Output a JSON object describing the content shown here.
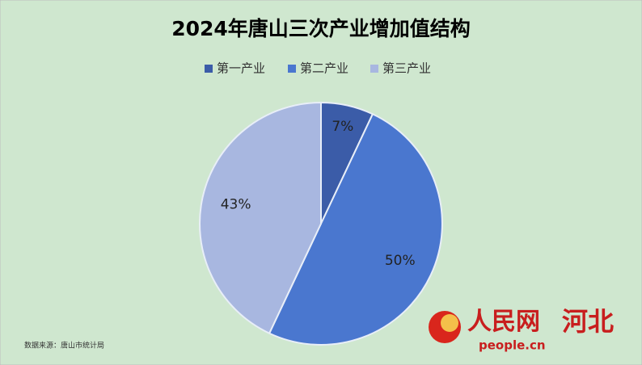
{
  "chart_data": {
    "type": "pie",
    "title": "2024年唐山三次产业增加值结构",
    "categories": [
      "第一产业",
      "第二产业",
      "第三产业"
    ],
    "values": [
      7,
      50,
      43
    ],
    "value_labels": [
      "7%",
      "50%",
      "43%"
    ],
    "colors": [
      "#3b5ca8",
      "#4a77cf",
      "#a8b7e0"
    ],
    "legend": "top",
    "source": "数据来源：唐山市统计局"
  },
  "logo": {
    "name": "人民网",
    "region": "河北",
    "url": "people.cn"
  }
}
